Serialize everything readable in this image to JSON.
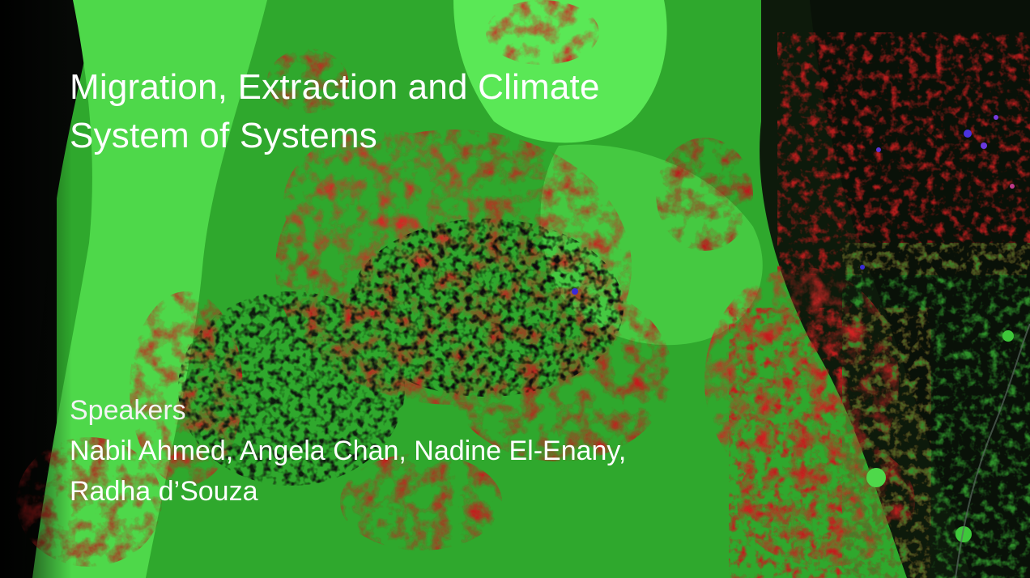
{
  "slide": {
    "title_lines": [
      "Migration, Extraction and Climate",
      "System of Systems"
    ],
    "speakers_label": "Speakers",
    "speakers_lines": [
      "Nabil Ahmed, Angela Chan, Nadine El-Enany,",
      "Radha d’Souza"
    ]
  },
  "colors": {
    "vegetation_green": "#3ec83a",
    "urban_red": "#d42424",
    "water_blue": "#3a2ad8",
    "dark_soil": "#0b120a",
    "text": "#ffffff"
  }
}
